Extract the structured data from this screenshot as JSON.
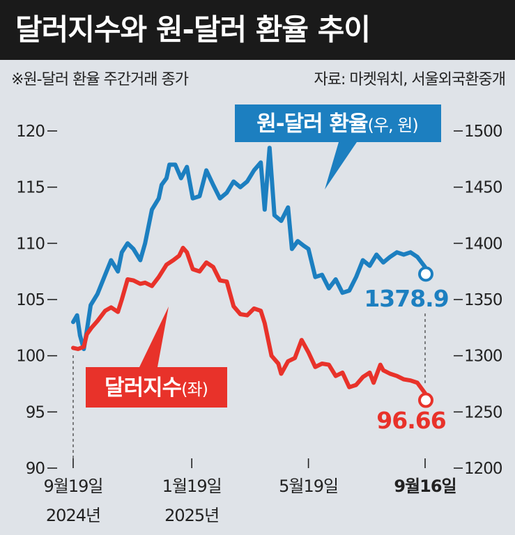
{
  "header": {
    "title": "달러지수와 원-달러 환율 추이"
  },
  "notes": {
    "left": "※원-달러 환율 주간거래 종가",
    "right": "자료: 마켓워치, 서울외국환중개"
  },
  "colors": {
    "krw_line": "#1c7fc0",
    "dxy_line": "#e8322a",
    "background": "#dfe3e8",
    "title_bg": "#1a1a1a"
  },
  "chart_data": {
    "type": "line",
    "title": "달러지수와 원-달러 환율 추이",
    "x_ticks": [
      {
        "date": "2024-09-19",
        "line1": "9월19일",
        "line2": "2024년",
        "bold": false
      },
      {
        "date": "2025-01-19",
        "line1": "1월19일",
        "line2": "2025년",
        "bold": false
      },
      {
        "date": "2025-05-19",
        "line1": "5월19일",
        "line2": "",
        "bold": false
      },
      {
        "date": "2025-09-16",
        "line1": "9월16일",
        "line2": "",
        "bold": true
      }
    ],
    "x_range": [
      "2024-09-19",
      "2025-09-16"
    ],
    "left_axis": {
      "series": "달러지수",
      "ylim": [
        90,
        120
      ],
      "ticks": [
        "90",
        "95",
        "100",
        "105",
        "110",
        "115",
        "120"
      ]
    },
    "right_axis": {
      "series": "원-달러 환율",
      "ylim": [
        1200,
        1500
      ],
      "ticks": [
        "1200",
        "1250",
        "1300",
        "1350",
        "1400",
        "1450",
        "1500"
      ]
    },
    "series": [
      {
        "name": "원-달러 환율",
        "label_main": "원-달러 환율",
        "label_unit": "(우, 원)",
        "axis": "right",
        "end_label": "1378.9",
        "points": [
          [
            "2024-09-19",
            1330
          ],
          [
            "2024-09-23",
            1336
          ],
          [
            "2024-09-26",
            1318
          ],
          [
            "2024-09-30",
            1306
          ],
          [
            "2024-10-03",
            1322
          ],
          [
            "2024-10-07",
            1345
          ],
          [
            "2024-10-14",
            1355
          ],
          [
            "2024-10-21",
            1370
          ],
          [
            "2024-10-28",
            1385
          ],
          [
            "2024-11-04",
            1375
          ],
          [
            "2024-11-08",
            1392
          ],
          [
            "2024-11-14",
            1400
          ],
          [
            "2024-11-20",
            1395
          ],
          [
            "2024-11-27",
            1385
          ],
          [
            "2024-12-02",
            1400
          ],
          [
            "2024-12-09",
            1430
          ],
          [
            "2024-12-16",
            1440
          ],
          [
            "2024-12-19",
            1452
          ],
          [
            "2024-12-24",
            1458
          ],
          [
            "2024-12-27",
            1470
          ],
          [
            "2025-01-02",
            1470
          ],
          [
            "2025-01-08",
            1458
          ],
          [
            "2025-01-14",
            1468
          ],
          [
            "2025-01-20",
            1440
          ],
          [
            "2025-01-27",
            1442
          ],
          [
            "2025-02-03",
            1465
          ],
          [
            "2025-02-10",
            1452
          ],
          [
            "2025-02-17",
            1440
          ],
          [
            "2025-02-24",
            1445
          ],
          [
            "2025-03-03",
            1455
          ],
          [
            "2025-03-10",
            1450
          ],
          [
            "2025-03-17",
            1455
          ],
          [
            "2025-03-24",
            1465
          ],
          [
            "2025-03-31",
            1472
          ],
          [
            "2025-04-04",
            1430
          ],
          [
            "2025-04-09",
            1485
          ],
          [
            "2025-04-14",
            1425
          ],
          [
            "2025-04-21",
            1420
          ],
          [
            "2025-04-28",
            1432
          ],
          [
            "2025-05-02",
            1395
          ],
          [
            "2025-05-08",
            1402
          ],
          [
            "2025-05-14",
            1398
          ],
          [
            "2025-05-19",
            1395
          ],
          [
            "2025-05-26",
            1370
          ],
          [
            "2025-06-02",
            1372
          ],
          [
            "2025-06-09",
            1360
          ],
          [
            "2025-06-16",
            1368
          ],
          [
            "2025-06-23",
            1356
          ],
          [
            "2025-06-30",
            1358
          ],
          [
            "2025-07-07",
            1370
          ],
          [
            "2025-07-14",
            1385
          ],
          [
            "2025-07-21",
            1380
          ],
          [
            "2025-07-28",
            1390
          ],
          [
            "2025-08-04",
            1383
          ],
          [
            "2025-08-11",
            1388
          ],
          [
            "2025-08-18",
            1392
          ],
          [
            "2025-08-25",
            1390
          ],
          [
            "2025-09-01",
            1392
          ],
          [
            "2025-09-08",
            1388
          ],
          [
            "2025-09-16",
            1378.9
          ]
        ]
      },
      {
        "name": "달러지수",
        "label_main": "달러지수",
        "label_unit": "(좌)",
        "axis": "left",
        "end_label": "96.66",
        "points": [
          [
            "2024-09-19",
            100.7
          ],
          [
            "2024-09-24",
            100.6
          ],
          [
            "2024-09-30",
            100.8
          ],
          [
            "2024-10-03",
            101.9
          ],
          [
            "2024-10-08",
            102.5
          ],
          [
            "2024-10-14",
            103.1
          ],
          [
            "2024-10-22",
            104.0
          ],
          [
            "2024-10-28",
            104.3
          ],
          [
            "2024-11-04",
            103.9
          ],
          [
            "2024-11-08",
            105.0
          ],
          [
            "2024-11-14",
            106.8
          ],
          [
            "2024-11-20",
            106.7
          ],
          [
            "2024-11-27",
            106.4
          ],
          [
            "2024-12-02",
            106.5
          ],
          [
            "2024-12-09",
            106.2
          ],
          [
            "2024-12-16",
            107.0
          ],
          [
            "2024-12-24",
            108.1
          ],
          [
            "2024-12-31",
            108.5
          ],
          [
            "2025-01-06",
            108.9
          ],
          [
            "2025-01-10",
            109.6
          ],
          [
            "2025-01-14",
            109.2
          ],
          [
            "2025-01-20",
            107.7
          ],
          [
            "2025-01-27",
            107.5
          ],
          [
            "2025-02-03",
            108.3
          ],
          [
            "2025-02-10",
            107.9
          ],
          [
            "2025-02-17",
            106.7
          ],
          [
            "2025-02-24",
            106.6
          ],
          [
            "2025-03-03",
            104.4
          ],
          [
            "2025-03-10",
            103.7
          ],
          [
            "2025-03-17",
            103.6
          ],
          [
            "2025-03-24",
            104.2
          ],
          [
            "2025-03-31",
            104.0
          ],
          [
            "2025-04-04",
            102.9
          ],
          [
            "2025-04-11",
            100.0
          ],
          [
            "2025-04-18",
            99.3
          ],
          [
            "2025-04-21",
            98.4
          ],
          [
            "2025-04-28",
            99.5
          ],
          [
            "2025-05-05",
            99.8
          ],
          [
            "2025-05-12",
            101.4
          ],
          [
            "2025-05-19",
            100.3
          ],
          [
            "2025-05-26",
            99.0
          ],
          [
            "2025-06-02",
            99.3
          ],
          [
            "2025-06-09",
            99.2
          ],
          [
            "2025-06-16",
            98.2
          ],
          [
            "2025-06-23",
            98.5
          ],
          [
            "2025-06-30",
            97.2
          ],
          [
            "2025-07-07",
            97.4
          ],
          [
            "2025-07-14",
            98.1
          ],
          [
            "2025-07-21",
            98.5
          ],
          [
            "2025-07-25",
            97.6
          ],
          [
            "2025-08-01",
            99.2
          ],
          [
            "2025-08-04",
            98.7
          ],
          [
            "2025-08-11",
            98.4
          ],
          [
            "2025-08-18",
            98.2
          ],
          [
            "2025-08-25",
            97.9
          ],
          [
            "2025-09-01",
            97.8
          ],
          [
            "2025-09-08",
            97.6
          ],
          [
            "2025-09-16",
            96.66
          ]
        ]
      }
    ]
  }
}
